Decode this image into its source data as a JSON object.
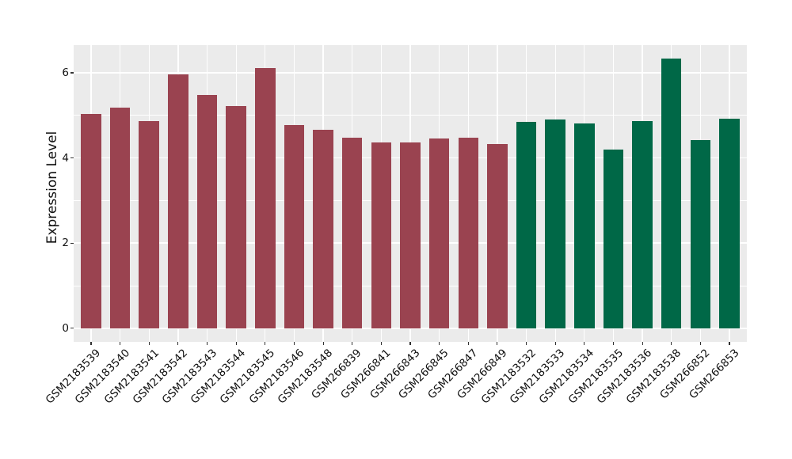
{
  "chart_data": {
    "type": "bar",
    "title": "",
    "xlabel": "",
    "ylabel": "Expression Level",
    "categories": [
      "GSM2183539",
      "GSM2183540",
      "GSM2183541",
      "GSM2183542",
      "GSM2183543",
      "GSM2183544",
      "GSM2183545",
      "GSM2183546",
      "GSM2183548",
      "GSM266839",
      "GSM266841",
      "GSM266843",
      "GSM266845",
      "GSM266847",
      "GSM266849",
      "GSM2183532",
      "GSM2183533",
      "GSM2183534",
      "GSM2183535",
      "GSM2183536",
      "GSM2183538",
      "GSM266852",
      "GSM266853"
    ],
    "values": [
      5.03,
      5.18,
      4.87,
      5.96,
      5.48,
      5.22,
      6.12,
      4.77,
      4.66,
      4.48,
      4.36,
      4.37,
      4.45,
      4.48,
      4.33,
      4.85,
      4.9,
      4.81,
      4.2,
      4.87,
      6.33,
      4.42,
      4.92
    ],
    "bar_groups": [
      "red",
      "red",
      "red",
      "red",
      "red",
      "red",
      "red",
      "red",
      "red",
      "red",
      "red",
      "red",
      "red",
      "red",
      "red",
      "green",
      "green",
      "green",
      "green",
      "green",
      "green",
      "green",
      "green"
    ],
    "palette": {
      "red": "#9A4350",
      "green": "#006847"
    },
    "ylim": [
      -0.32,
      6.65
    ],
    "yticks_major": [
      0,
      2,
      4,
      6
    ],
    "yticks_minor": [
      1,
      3,
      5
    ],
    "ytick_labels": [
      "0",
      "2",
      "4",
      "6"
    ],
    "grid": "on",
    "legend": "none",
    "panel_bg": "#EBEBEB",
    "grid_color": "#FFFFFF",
    "tick_color": "#333333"
  }
}
